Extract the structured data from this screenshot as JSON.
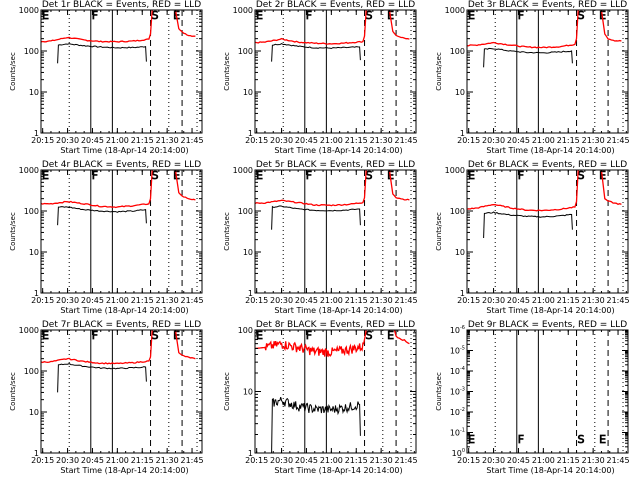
{
  "chart_data": [
    {
      "type": "line",
      "id": "det1r",
      "title": "Det 1r BLACK = Events, RED = LLD",
      "xlabel": "Start Time (18-Apr-14 20:14:00)",
      "ylabel": "Counts/sec",
      "xlim": [
        "20:14",
        "21:51"
      ],
      "ylim": [
        1,
        1000
      ],
      "yscale": "log",
      "xticks": [
        "20:15",
        "20:30",
        "20:45",
        "21:00",
        "21:15",
        "21:30",
        "21:45"
      ],
      "yticks": [
        "1",
        "10",
        "100",
        "1000"
      ],
      "series": [
        {
          "name": "Events",
          "color": "#000000",
          "x": [
            "20:24",
            "20:24.5",
            "20:30",
            "20:40",
            "20:50",
            "21:00",
            "21:10",
            "21:17",
            "21:17.5"
          ],
          "y": [
            50,
            140,
            150,
            135,
            125,
            120,
            122,
            128,
            55
          ]
        },
        {
          "name": "LLD",
          "color": "#ff0000",
          "x": [
            "20:14",
            "20:20",
            "20:30",
            "20:40",
            "20:50",
            "21:00",
            "21:10",
            "21:19",
            "21:20",
            "21:21",
            "21:21.5"
          ],
          "y": [
            170,
            175,
            215,
            185,
            170,
            168,
            175,
            195,
            260,
            1000,
            1000
          ]
        },
        {
          "name": "LLD (after)",
          "color": "#ff0000",
          "x": [
            "21:35",
            "21:37",
            "21:39",
            "21:43",
            "21:47"
          ],
          "y": [
            1000,
            350,
            290,
            240,
            230
          ]
        }
      ]
    },
    {
      "type": "line",
      "id": "det2r",
      "title": "Det 2r BLACK = Events, RED = LLD",
      "xlabel": "Start Time (18-Apr-14 20:14:00)",
      "ylabel": "Counts/sec",
      "xlim": [
        "20:14",
        "21:51"
      ],
      "ylim": [
        1,
        1000
      ],
      "yscale": "log",
      "xticks": [
        "20:15",
        "20:30",
        "20:45",
        "21:00",
        "21:15",
        "21:30",
        "21:45"
      ],
      "yticks": [
        "1",
        "10",
        "100",
        "1000"
      ],
      "series": [
        {
          "name": "Events",
          "color": "#000000",
          "x": [
            "20:24",
            "20:24.5",
            "20:30",
            "20:40",
            "20:50",
            "21:00",
            "21:10",
            "21:17",
            "21:17.5"
          ],
          "y": [
            55,
            140,
            150,
            130,
            120,
            118,
            122,
            125,
            60
          ]
        },
        {
          "name": "LLD",
          "color": "#ff0000",
          "x": [
            "20:14",
            "20:20",
            "20:30",
            "20:40",
            "20:50",
            "21:00",
            "21:10",
            "21:19",
            "21:20",
            "21:21",
            "21:21.5"
          ],
          "y": [
            160,
            165,
            195,
            165,
            155,
            150,
            158,
            170,
            230,
            1000,
            1000
          ]
        },
        {
          "name": "LLD (after)",
          "color": "#ff0000",
          "x": [
            "21:35",
            "21:37",
            "21:39",
            "21:43",
            "21:47"
          ],
          "y": [
            1000,
            300,
            240,
            210,
            195
          ]
        }
      ]
    },
    {
      "type": "line",
      "id": "det3r",
      "title": "Det 3r BLACK = Events, RED = LLD",
      "xlabel": "Start Time (18-Apr-14 20:14:00)",
      "ylabel": "Counts/sec",
      "xlim": [
        "20:14",
        "21:51"
      ],
      "ylim": [
        1,
        1000
      ],
      "yscale": "log",
      "xticks": [
        "20:15",
        "20:30",
        "20:45",
        "21:00",
        "21:15",
        "21:30",
        "21:45"
      ],
      "yticks": [
        "1",
        "10",
        "100",
        "1000"
      ],
      "series": [
        {
          "name": "Events",
          "color": "#000000",
          "x": [
            "20:24",
            "20:24.5",
            "20:30",
            "20:40",
            "20:50",
            "21:00",
            "21:10",
            "21:17",
            "21:17.5"
          ],
          "y": [
            40,
            110,
            115,
            100,
            92,
            90,
            95,
            100,
            50
          ]
        },
        {
          "name": "LLD",
          "color": "#ff0000",
          "x": [
            "20:14",
            "20:20",
            "20:30",
            "20:40",
            "20:50",
            "21:00",
            "21:10",
            "21:19",
            "21:20",
            "21:21",
            "21:21.5"
          ],
          "y": [
            135,
            140,
            160,
            140,
            125,
            122,
            128,
            145,
            200,
            1000,
            1000
          ]
        },
        {
          "name": "LLD (after)",
          "color": "#ff0000",
          "x": [
            "21:35",
            "21:37",
            "21:39",
            "21:43",
            "21:47"
          ],
          "y": [
            1000,
            260,
            200,
            180,
            175
          ]
        }
      ]
    },
    {
      "type": "line",
      "id": "det4r",
      "title": "Det 4r BLACK = Events, RED = LLD",
      "xlabel": "Start Time (18-Apr-14 20:14:00)",
      "ylabel": "Counts/sec",
      "xlim": [
        "20:14",
        "21:51"
      ],
      "ylim": [
        1,
        1000
      ],
      "yscale": "log",
      "xticks": [
        "20:15",
        "20:30",
        "20:45",
        "21:00",
        "21:15",
        "21:30",
        "21:45"
      ],
      "yticks": [
        "1",
        "10",
        "100",
        "1000"
      ],
      "series": [
        {
          "name": "Events",
          "color": "#000000",
          "x": [
            "20:24",
            "20:24.5",
            "20:30",
            "20:40",
            "20:50",
            "21:00",
            "21:10",
            "21:17",
            "21:17.5"
          ],
          "y": [
            45,
            125,
            125,
            108,
            100,
            96,
            100,
            108,
            50
          ]
        },
        {
          "name": "LLD",
          "color": "#ff0000",
          "x": [
            "20:14",
            "20:20",
            "20:30",
            "20:40",
            "20:50",
            "21:00",
            "21:10",
            "21:19",
            "21:20",
            "21:21",
            "21:21.5"
          ],
          "y": [
            150,
            150,
            170,
            150,
            130,
            125,
            135,
            150,
            200,
            1000,
            1000
          ]
        },
        {
          "name": "LLD (after)",
          "color": "#ff0000",
          "x": [
            "21:35",
            "21:37",
            "21:39",
            "21:43",
            "21:47"
          ],
          "y": [
            1000,
            280,
            230,
            200,
            185
          ]
        }
      ]
    },
    {
      "type": "line",
      "id": "det5r",
      "title": "Det 5r BLACK = Events, RED = LLD",
      "xlabel": "Start Time (18-Apr-14 20:14:00)",
      "ylabel": "Counts/sec",
      "xlim": [
        "20:14",
        "21:51"
      ],
      "ylim": [
        1,
        1000
      ],
      "yscale": "log",
      "xticks": [
        "20:15",
        "20:30",
        "20:45",
        "21:00",
        "21:15",
        "21:30",
        "21:45"
      ],
      "yticks": [
        "1",
        "10",
        "100",
        "1000"
      ],
      "series": [
        {
          "name": "Events",
          "color": "#000000",
          "x": [
            "20:24",
            "20:24.5",
            "20:30",
            "20:40",
            "20:50",
            "21:00",
            "21:10",
            "21:17",
            "21:17.5"
          ],
          "y": [
            35,
            125,
            130,
            112,
            104,
            102,
            106,
            112,
            45
          ]
        },
        {
          "name": "LLD",
          "color": "#ff0000",
          "x": [
            "20:14",
            "20:20",
            "20:30",
            "20:40",
            "20:50",
            "21:00",
            "21:10",
            "21:19",
            "21:20",
            "21:21",
            "21:21.5"
          ],
          "y": [
            155,
            158,
            180,
            160,
            140,
            138,
            145,
            160,
            210,
            1000,
            1000
          ]
        },
        {
          "name": "LLD (after)",
          "color": "#ff0000",
          "x": [
            "21:35",
            "21:37",
            "21:39",
            "21:43",
            "21:47"
          ],
          "y": [
            1000,
            260,
            215,
            195,
            185
          ]
        }
      ]
    },
    {
      "type": "line",
      "id": "det6r",
      "title": "Det 6r BLACK = Events, RED = LLD",
      "xlabel": "Start Time (18-Apr-14 20:14:00)",
      "ylabel": "Counts/sec",
      "xlim": [
        "20:14",
        "21:51"
      ],
      "ylim": [
        1,
        1000
      ],
      "yscale": "log",
      "xticks": [
        "20:15",
        "20:30",
        "20:45",
        "21:00",
        "21:15",
        "21:30",
        "21:45"
      ],
      "yticks": [
        "1",
        "10",
        "100",
        "1000"
      ],
      "series": [
        {
          "name": "Events",
          "color": "#000000",
          "x": [
            "20:24",
            "20:24.5",
            "20:30",
            "20:40",
            "20:50",
            "21:00",
            "21:10",
            "21:17",
            "21:17.5"
          ],
          "y": [
            22,
            88,
            92,
            80,
            74,
            72,
            76,
            82,
            35
          ]
        },
        {
          "name": "LLD",
          "color": "#ff0000",
          "x": [
            "20:14",
            "20:20",
            "20:30",
            "20:40",
            "20:50",
            "21:00",
            "21:10",
            "21:19",
            "21:20",
            "21:21",
            "21:21.5"
          ],
          "y": [
            112,
            118,
            145,
            120,
            105,
            103,
            110,
            125,
            170,
            1000,
            1000
          ]
        },
        {
          "name": "LLD (after)",
          "color": "#ff0000",
          "x": [
            "21:35",
            "21:37",
            "21:39",
            "21:43",
            "21:47"
          ],
          "y": [
            1000,
            200,
            175,
            155,
            145
          ]
        }
      ]
    },
    {
      "type": "line",
      "id": "det7r",
      "title": "Det 7r BLACK = Events, RED = LLD",
      "xlabel": "Start Time (18-Apr-14 20:14:00)",
      "ylabel": "Counts/sec",
      "xlim": [
        "20:14",
        "21:51"
      ],
      "ylim": [
        1,
        1000
      ],
      "yscale": "log",
      "xticks": [
        "20:15",
        "20:30",
        "20:45",
        "21:00",
        "21:15",
        "21:30",
        "21:45"
      ],
      "yticks": [
        "1",
        "10",
        "100",
        "1000"
      ],
      "series": [
        {
          "name": "Events",
          "color": "#000000",
          "x": [
            "20:24",
            "20:24.5",
            "20:30",
            "20:40",
            "20:50",
            "21:00",
            "21:10",
            "21:17",
            "21:17.5"
          ],
          "y": [
            30,
            140,
            150,
            130,
            118,
            115,
            120,
            125,
            55
          ]
        },
        {
          "name": "LLD",
          "color": "#ff0000",
          "x": [
            "20:14",
            "20:20",
            "20:30",
            "20:40",
            "20:50",
            "21:00",
            "21:10",
            "21:19",
            "21:20",
            "21:21",
            "21:21.5"
          ],
          "y": [
            165,
            168,
            200,
            170,
            155,
            152,
            160,
            175,
            220,
            1000,
            1000
          ]
        },
        {
          "name": "LLD (after)",
          "color": "#ff0000",
          "x": [
            "21:35",
            "21:37",
            "21:39",
            "21:43",
            "21:47"
          ],
          "y": [
            1000,
            280,
            240,
            215,
            200
          ]
        }
      ]
    },
    {
      "type": "line",
      "id": "det8r",
      "title": "Det 8r BLACK = Events, RED = LLD",
      "xlabel": "Start Time (18-Apr-14 20:14:00)",
      "ylabel": "Counts/sec",
      "xlim": [
        "20:14",
        "21:51"
      ],
      "ylim": [
        1,
        100
      ],
      "yscale": "log",
      "xticks": [
        "20:15",
        "20:30",
        "20:45",
        "21:00",
        "21:15",
        "21:30",
        "21:45"
      ],
      "yticks": [
        "1",
        "10",
        "100"
      ],
      "series": [
        {
          "name": "Events",
          "color": "#000000",
          "noisy": true,
          "x": [
            "20:24",
            "20:24.5",
            "20:30",
            "20:40",
            "20:50",
            "21:00",
            "21:10",
            "21:17",
            "21:17.5"
          ],
          "y": [
            1,
            6.5,
            7.2,
            5.8,
            5.2,
            5.1,
            5.6,
            6.2,
            1.9
          ]
        },
        {
          "name": "LLD",
          "color": "#ff0000",
          "noisy": true,
          "x": [
            "20:14",
            "20:20",
            "20:30",
            "20:40",
            "20:50",
            "21:00",
            "21:10",
            "21:19",
            "21:20",
            "21:21"
          ],
          "y": [
            50,
            52,
            60,
            52,
            45,
            44,
            48,
            54,
            70,
            100
          ]
        },
        {
          "name": "LLD (after)",
          "color": "#ff0000",
          "x": [
            "21:38",
            "21:39",
            "21:43",
            "21:47"
          ],
          "y": [
            100,
            80,
            70,
            60
          ]
        }
      ]
    },
    {
      "type": "line",
      "id": "det9r",
      "title": "Det 9r BLACK = Events, RED = LLD",
      "xlabel": "Start Time (18-Apr-14 20:14:00)",
      "ylabel": "Counts/sec",
      "xlim": [
        "20:14",
        "21:51"
      ],
      "ylim": [
        1,
        1e-06
      ],
      "yscale": "log",
      "xticks": [
        "20:15",
        "20:30",
        "20:45",
        "21:00",
        "21:15",
        "21:30",
        "21:45"
      ],
      "yticks": [
        "10^0",
        "10^-1",
        "10^-2",
        "10^-3",
        "10^-4",
        "10^-5",
        "10^-6"
      ],
      "series": []
    }
  ],
  "markers": {
    "letters": [
      {
        "label": "E",
        "time": "20:14"
      },
      {
        "label": "F",
        "time": "20:44"
      },
      {
        "label": "S",
        "time": "21:20"
      },
      {
        "label": "E",
        "time": "21:33"
      }
    ],
    "lines": [
      {
        "time": "20:31",
        "style": "dotted"
      },
      {
        "time": "20:44",
        "style": "solid"
      },
      {
        "time": "20:57",
        "style": "solid"
      },
      {
        "time": "21:20",
        "style": "dashed"
      },
      {
        "time": "21:31",
        "style": "dotted"
      },
      {
        "time": "21:39",
        "style": "dashed"
      },
      {
        "time": "21:48",
        "style": "dotted"
      }
    ]
  }
}
